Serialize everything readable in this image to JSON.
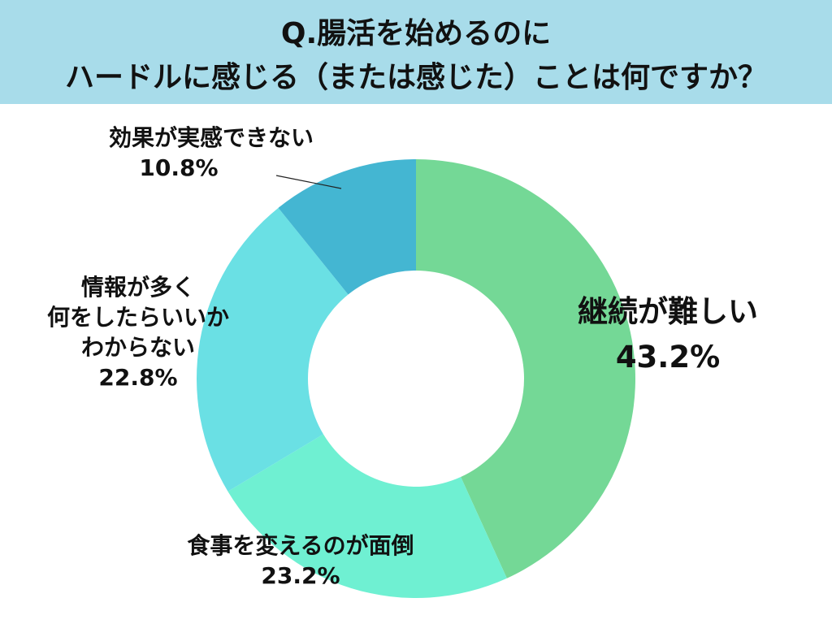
{
  "header": {
    "title_line1": "Q.腸活を始めるのに",
    "title_line2": "ハードルに感じる（または感じた）ことは何ですか？",
    "background": "#a8dcea"
  },
  "chart_data": {
    "type": "pie",
    "variant": "donut",
    "title": "Q.腸活を始めるのにハードルに感じる（または感じた）ことは何ですか？",
    "categories": [
      "継続が難しい",
      "食事を変えるのが面倒",
      "情報が多く何をしたらいいかわからない",
      "効果が実感できない"
    ],
    "values": [
      43.2,
      23.2,
      22.8,
      10.8
    ],
    "unit": "%",
    "colors": [
      "#74d896",
      "#6ff0d2",
      "#6ae0e4",
      "#44b6d2"
    ],
    "start_angle": "12 o'clock, clockwise",
    "legend": "none (inline labels)"
  },
  "labels": {
    "continue": {
      "name": "継続が難しい",
      "value": "43.2%"
    },
    "food": {
      "name": "食事を変えるのが面倒",
      "value": "23.2%"
    },
    "info": {
      "line1": "情報が多く",
      "line2": "何をしたらいいか",
      "line3": "わからない",
      "value": "22.8%"
    },
    "effect": {
      "name": "効果が実感できない",
      "value": "10.8%"
    }
  }
}
